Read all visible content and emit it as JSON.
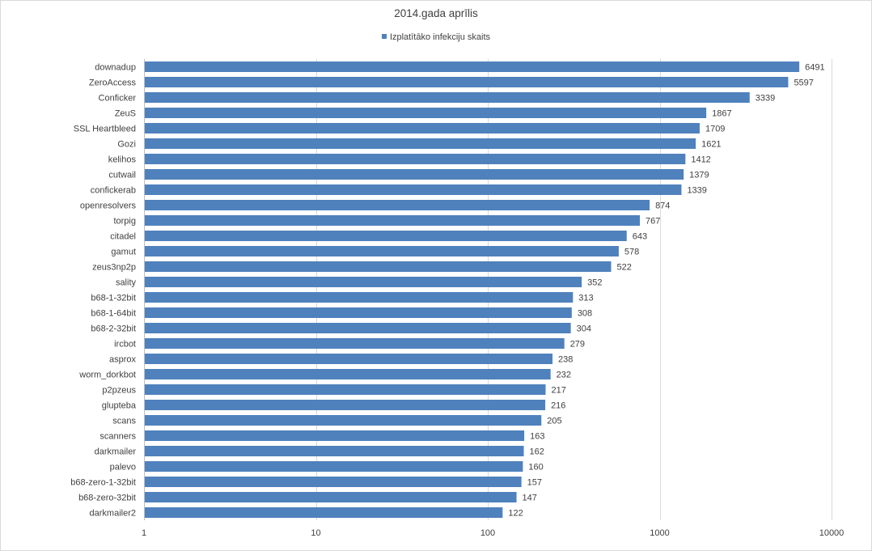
{
  "chart_data": {
    "type": "bar",
    "orientation": "horizontal",
    "title": "2014.gada aprīlis",
    "x_scale": "log",
    "xlim": [
      1,
      10000
    ],
    "x_ticks": [
      "1",
      "10",
      "100",
      "1000",
      "10000"
    ],
    "x_tick_values": [
      1,
      10,
      100,
      1000,
      10000
    ],
    "grid": true,
    "legend_position": "top",
    "series": [
      {
        "name": "Izplatītāko infekciju skaits",
        "color": "#4f81bd",
        "values": [
          6491,
          5597,
          3339,
          1867,
          1709,
          1621,
          1412,
          1379,
          1339,
          874,
          767,
          643,
          578,
          522,
          352,
          313,
          308,
          304,
          279,
          238,
          232,
          217,
          216,
          205,
          163,
          162,
          160,
          157,
          147,
          122
        ]
      }
    ],
    "categories": [
      "downadup",
      "ZeroAccess",
      "Conficker",
      "ZeuS",
      "SSL Heartbleed",
      "Gozi",
      "kelihos",
      "cutwail",
      "confickerab",
      "openresolvers",
      "torpig",
      "citadel",
      "gamut",
      "zeus3np2p",
      "sality",
      "b68-1-32bit",
      "b68-1-64bit",
      "b68-2-32bit",
      "ircbot",
      "asprox",
      "worm_dorkbot",
      "p2pzeus",
      "glupteba",
      "scans",
      "scanners",
      "darkmailer",
      "palevo",
      "b68-zero-1-32bit",
      "b68-zero-32bit",
      "darkmailer2"
    ]
  }
}
